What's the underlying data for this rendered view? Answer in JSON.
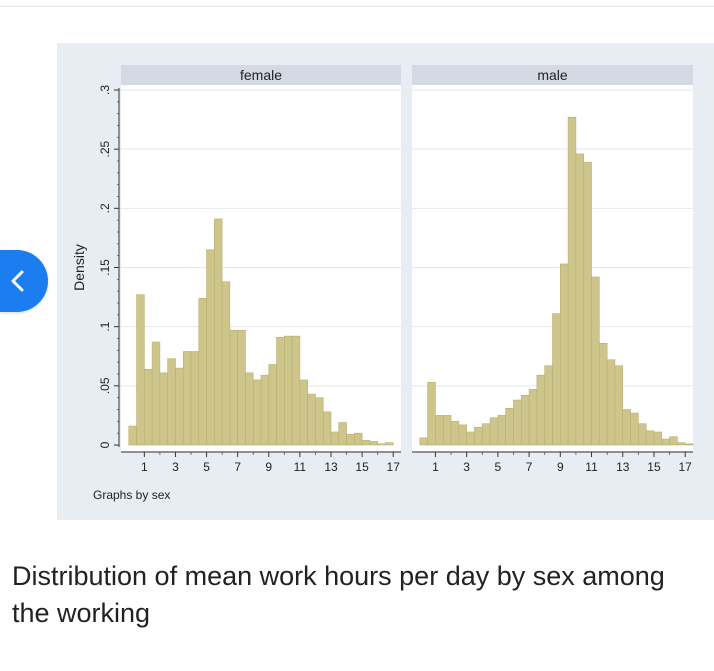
{
  "caption": "Distribution of mean work hours per day by sex among the working",
  "figure_note": "Graphs by sex",
  "back_icon": "chevron-left-icon",
  "colors": {
    "bar_fill": "#cdc58c",
    "bar_stroke": "#b9b06e",
    "panel_header": "#d5d9e3",
    "plot_bg": "#ffffff",
    "grid": "#e4e7ee",
    "accent": "#1c7df0"
  },
  "chart_data": {
    "type": "bar",
    "title": "",
    "xlabel": "",
    "ylabel": "Density",
    "x_ticks": [
      "1",
      "3",
      "5",
      "7",
      "9",
      "11",
      "13",
      "15",
      "17"
    ],
    "y_ticks": [
      "0",
      ".05",
      ".1",
      ".15",
      ".2",
      ".25",
      ".3"
    ],
    "xlim": [
      -0.5,
      17.5
    ],
    "ylim": [
      0,
      0.3
    ],
    "bin_width": 0.5,
    "grid": true,
    "panels": [
      {
        "name": "female",
        "bins": [
          {
            "x": 0.25,
            "y": 0.016
          },
          {
            "x": 0.75,
            "y": 0.127
          },
          {
            "x": 1.25,
            "y": 0.064
          },
          {
            "x": 1.75,
            "y": 0.087
          },
          {
            "x": 2.25,
            "y": 0.061
          },
          {
            "x": 2.75,
            "y": 0.073
          },
          {
            "x": 3.25,
            "y": 0.065
          },
          {
            "x": 3.75,
            "y": 0.079
          },
          {
            "x": 4.25,
            "y": 0.079
          },
          {
            "x": 4.75,
            "y": 0.124
          },
          {
            "x": 5.25,
            "y": 0.165
          },
          {
            "x": 5.75,
            "y": 0.191
          },
          {
            "x": 6.25,
            "y": 0.138
          },
          {
            "x": 6.75,
            "y": 0.097
          },
          {
            "x": 7.25,
            "y": 0.097
          },
          {
            "x": 7.75,
            "y": 0.061
          },
          {
            "x": 8.25,
            "y": 0.055
          },
          {
            "x": 8.75,
            "y": 0.059
          },
          {
            "x": 9.25,
            "y": 0.068
          },
          {
            "x": 9.75,
            "y": 0.091
          },
          {
            "x": 10.25,
            "y": 0.092
          },
          {
            "x": 10.75,
            "y": 0.092
          },
          {
            "x": 11.25,
            "y": 0.055
          },
          {
            "x": 11.75,
            "y": 0.043
          },
          {
            "x": 12.25,
            "y": 0.04
          },
          {
            "x": 12.75,
            "y": 0.028
          },
          {
            "x": 13.25,
            "y": 0.011
          },
          {
            "x": 13.75,
            "y": 0.019
          },
          {
            "x": 14.25,
            "y": 0.009
          },
          {
            "x": 14.75,
            "y": 0.01
          },
          {
            "x": 15.25,
            "y": 0.004
          },
          {
            "x": 15.75,
            "y": 0.003
          },
          {
            "x": 16.25,
            "y": 0.001
          },
          {
            "x": 16.75,
            "y": 0.002
          }
        ]
      },
      {
        "name": "male",
        "bins": [
          {
            "x": 0.25,
            "y": 0.006
          },
          {
            "x": 0.75,
            "y": 0.053
          },
          {
            "x": 1.25,
            "y": 0.025
          },
          {
            "x": 1.75,
            "y": 0.025
          },
          {
            "x": 2.25,
            "y": 0.02
          },
          {
            "x": 2.75,
            "y": 0.017
          },
          {
            "x": 3.25,
            "y": 0.011
          },
          {
            "x": 3.75,
            "y": 0.015
          },
          {
            "x": 4.25,
            "y": 0.018
          },
          {
            "x": 4.75,
            "y": 0.023
          },
          {
            "x": 5.25,
            "y": 0.025
          },
          {
            "x": 5.75,
            "y": 0.031
          },
          {
            "x": 6.25,
            "y": 0.038
          },
          {
            "x": 6.75,
            "y": 0.042
          },
          {
            "x": 7.25,
            "y": 0.047
          },
          {
            "x": 7.75,
            "y": 0.059
          },
          {
            "x": 8.25,
            "y": 0.067
          },
          {
            "x": 8.75,
            "y": 0.111
          },
          {
            "x": 9.25,
            "y": 0.153
          },
          {
            "x": 9.75,
            "y": 0.277
          },
          {
            "x": 10.25,
            "y": 0.246
          },
          {
            "x": 10.75,
            "y": 0.239
          },
          {
            "x": 11.25,
            "y": 0.142
          },
          {
            "x": 11.75,
            "y": 0.086
          },
          {
            "x": 12.25,
            "y": 0.072
          },
          {
            "x": 12.75,
            "y": 0.067
          },
          {
            "x": 13.25,
            "y": 0.03
          },
          {
            "x": 13.75,
            "y": 0.027
          },
          {
            "x": 14.25,
            "y": 0.018
          },
          {
            "x": 14.75,
            "y": 0.012
          },
          {
            "x": 15.25,
            "y": 0.011
          },
          {
            "x": 15.75,
            "y": 0.005
          },
          {
            "x": 16.25,
            "y": 0.007
          },
          {
            "x": 16.75,
            "y": 0.002
          },
          {
            "x": 17.25,
            "y": 0.001
          }
        ]
      }
    ]
  }
}
